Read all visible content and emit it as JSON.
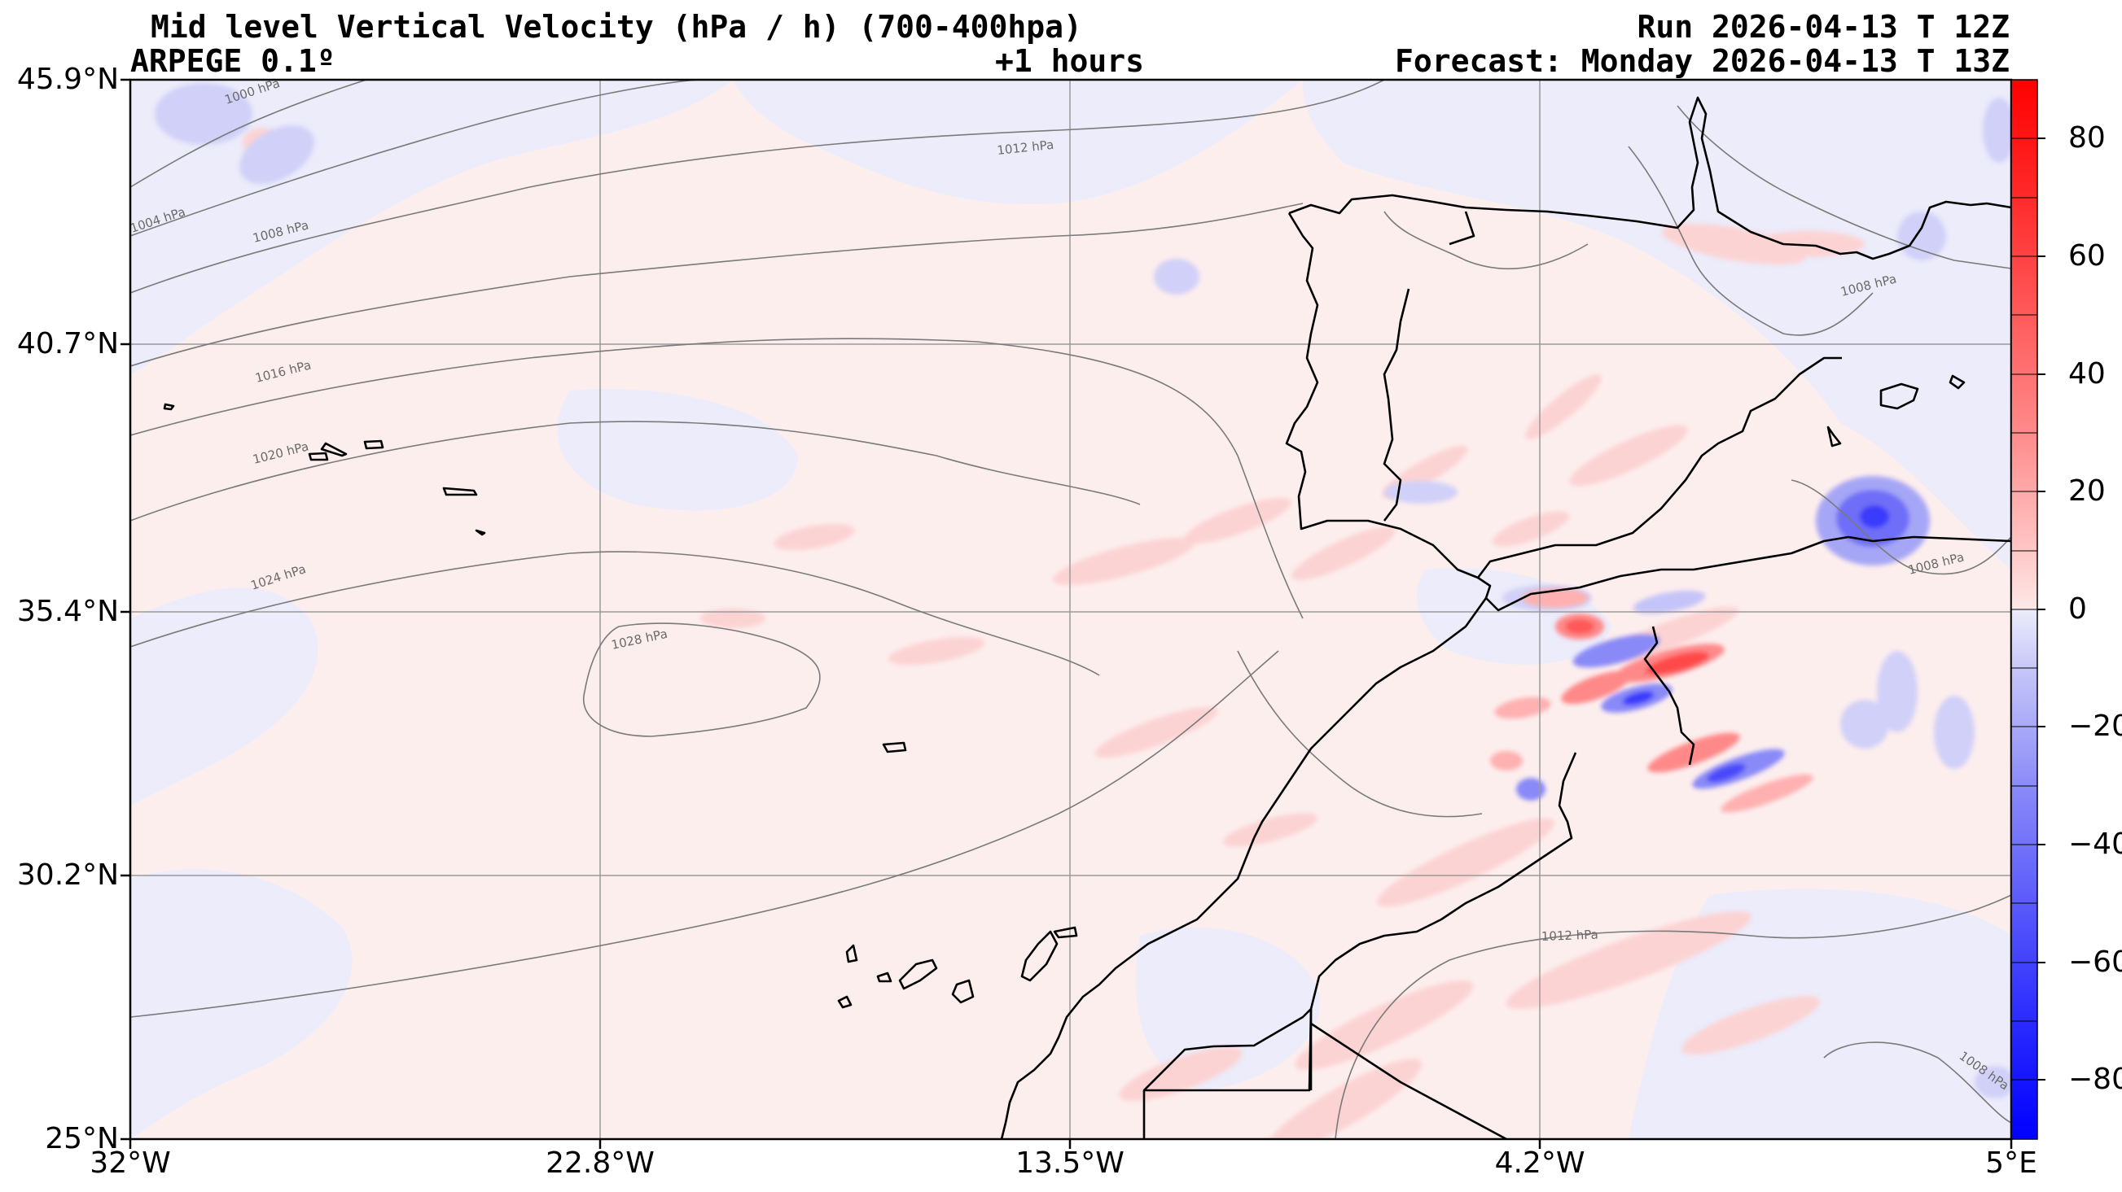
{
  "header": {
    "title": "Mid level Vertical Velocity (hPa / h)  (700-400hpa)",
    "model": "ARPEGE 0.1º",
    "lead": "+1 hours",
    "run": "Run 2026-04-13 T 12Z",
    "forecast": "Forecast: Monday 2026-04-13 T 13Z"
  },
  "axes": {
    "lat_labels": [
      "45.9°N",
      "40.7°N",
      "35.4°N",
      "30.2°N",
      "25°N"
    ],
    "lon_labels": [
      "32°W",
      "22.8°W",
      "13.5°W",
      "4.2°W",
      "5°E"
    ]
  },
  "colorbar": {
    "labels": [
      "80",
      "60",
      "40",
      "20",
      "0",
      "−20",
      "−40",
      "−60",
      "−80"
    ],
    "range": [
      -90,
      90
    ],
    "colors": {
      "strong_positive": "#ff0000",
      "weak_positive": "#fde8e8",
      "weak_negative": "#ececfb",
      "strong_negative": "#0000ff"
    }
  },
  "isobars": [
    "1000 hPa",
    "1004 hPa",
    "1008 hPa",
    "1012 hPa",
    "1016 hPa",
    "1020 hPa",
    "1024 hPa",
    "1028 hPa",
    "1012 hPa",
    "1008 hPa",
    "1008 hPa",
    "1008 hPa"
  ]
}
